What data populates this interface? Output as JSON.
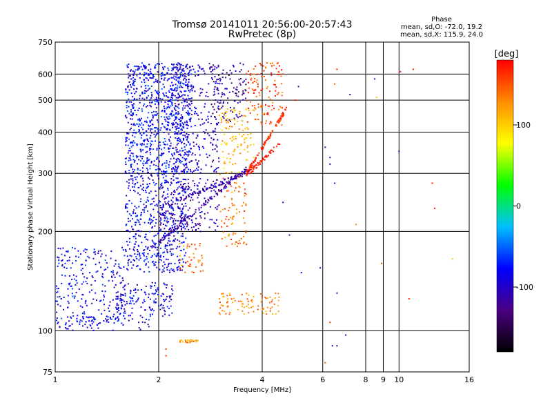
{
  "chart_data": {
    "type": "scatter",
    "title": "Tromsø 20141011 20:56:00-20:57:43",
    "subtitle": "RwPretec (8p)",
    "xlabel": "Frequency [MHz]",
    "ylabel": "Stationary phase Virtual Height [km]",
    "x_scale": "log",
    "y_scale": "log",
    "xlim": [
      1,
      16
    ],
    "ylim": [
      75,
      750
    ],
    "x_ticks": [
      1,
      2,
      4,
      6,
      8,
      9,
      10,
      16
    ],
    "x_tick_labels": [
      "1",
      "2",
      "4",
      "6",
      "8",
      "9",
      "10",
      "16"
    ],
    "y_ticks": [
      75,
      100,
      200,
      300,
      400,
      500,
      600,
      750
    ],
    "y_tick_labels": [
      "75",
      "100",
      "200",
      "300",
      "400",
      "500",
      "600",
      "750"
    ],
    "grid": true,
    "phase_info": {
      "title": "Phase",
      "line_o": "mean, sd,O: -72.0, 19.2",
      "line_x": "mean, sd,X: 115.9, 24.0"
    },
    "colorbar": {
      "label": "[deg]",
      "range": [
        -180,
        180
      ],
      "ticks": [
        100,
        0,
        -100
      ],
      "tick_labels": [
        "100",
        "0",
        "-100"
      ],
      "colors": [
        "#000000",
        "#4b0082",
        "#0000ff",
        "#00bfff",
        "#00ff00",
        "#ffff00",
        "#ff8c00",
        "#ff0000"
      ]
    },
    "clusters": [
      {
        "x": [
          1.6,
          2.5
        ],
        "y": [
          300,
          650
        ],
        "phase": -80,
        "count": 900
      },
      {
        "x": [
          1.6,
          2.4
        ],
        "y": [
          150,
          300
        ],
        "phase": -85,
        "count": 500
      },
      {
        "x": [
          1.0,
          1.6
        ],
        "y": [
          105,
          180
        ],
        "phase": -85,
        "count": 250
      },
      {
        "x": [
          1.5,
          2.2
        ],
        "y": [
          110,
          140
        ],
        "phase": -90,
        "count": 150
      },
      {
        "x": [
          2.2,
          3.0
        ],
        "y": [
          300,
          650
        ],
        "phase": -100,
        "count": 250
      },
      {
        "x": [
          2.8,
          3.6
        ],
        "y": [
          430,
          650
        ],
        "phase": -120,
        "count": 120
      },
      {
        "x": [
          2.0,
          3.0
        ],
        "y": [
          200,
          290
        ],
        "phase": -110,
        "count": 200
      },
      {
        "x": [
          3.0,
          3.8
        ],
        "y": [
          300,
          480
        ],
        "phase": 110,
        "count": 110
      },
      {
        "x": [
          3.6,
          4.6
        ],
        "y": [
          420,
          650
        ],
        "phase": 150,
        "count": 120
      },
      {
        "x": [
          3.0,
          3.6
        ],
        "y": [
          180,
          300
        ],
        "phase": 140,
        "count": 90
      },
      {
        "x": [
          3.0,
          4.5
        ],
        "y": [
          112,
          130
        ],
        "phase": 130,
        "count": 90
      },
      {
        "x": [
          2.3,
          2.7
        ],
        "y": [
          150,
          185
        ],
        "phase": 140,
        "count": 40
      },
      {
        "x": [
          2.3,
          2.6
        ],
        "y": [
          92,
          94
        ],
        "phase": 130,
        "count": 25
      },
      {
        "x": [
          1.0,
          1.9
        ],
        "y": [
          100,
          110
        ],
        "phase": -90,
        "count": 60
      }
    ],
    "traces": [
      {
        "x": [
          2.0,
          3.6
        ],
        "y": [
          185,
          310
        ],
        "phase": -115,
        "count": 120
      },
      {
        "x": [
          2.3,
          3.7
        ],
        "y": [
          250,
          305
        ],
        "phase": -110,
        "count": 100
      },
      {
        "x": [
          3.6,
          4.7
        ],
        "y": [
          300,
          470
        ],
        "phase": 165,
        "count": 100
      },
      {
        "x": [
          3.6,
          4.5
        ],
        "y": [
          295,
          370
        ],
        "phase": 170,
        "count": 60
      }
    ],
    "sparse_points": [
      [
        5.0,
        500,
        170
      ],
      [
        5.1,
        550,
        -120
      ],
      [
        6.1,
        360,
        -100
      ],
      [
        6.3,
        320,
        -100
      ],
      [
        6.5,
        560,
        140
      ],
      [
        6.6,
        620,
        170
      ],
      [
        7.2,
        520,
        -110
      ],
      [
        8.5,
        580,
        -100
      ],
      [
        8.6,
        510,
        110
      ],
      [
        10.0,
        350,
        -120
      ],
      [
        10.1,
        610,
        170
      ],
      [
        11.0,
        620,
        170
      ],
      [
        12.5,
        280,
        170
      ],
      [
        12.7,
        235,
        170
      ],
      [
        14.3,
        165,
        110
      ],
      [
        6.1,
        80,
        150
      ],
      [
        6.4,
        90,
        -110
      ],
      [
        6.6,
        130,
        -100
      ],
      [
        7.5,
        210,
        130
      ],
      [
        8.9,
        160,
        160
      ],
      [
        10.7,
        125,
        170
      ],
      [
        6.5,
        280,
        -110
      ],
      [
        6.3,
        335,
        -120
      ],
      [
        4.8,
        195,
        -110
      ],
      [
        5.2,
        150,
        -100
      ],
      [
        6.6,
        90,
        -120
      ],
      [
        5.9,
        155,
        -110
      ],
      [
        6.3,
        106,
        160
      ],
      [
        2.1,
        88,
        170
      ],
      [
        2.1,
        84,
        170
      ],
      [
        7.0,
        97,
        -110
      ],
      [
        4.6,
        245,
        -100
      ]
    ]
  }
}
